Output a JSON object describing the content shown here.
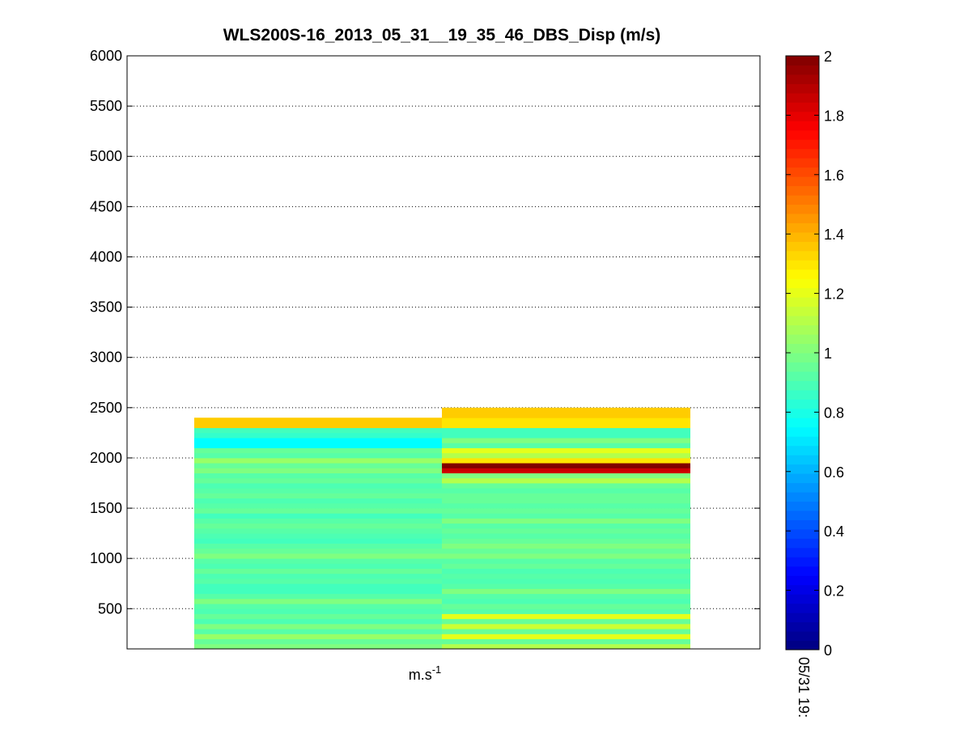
{
  "chart_data": {
    "type": "heatmap",
    "title": "WLS200S-16_2013_05_31__19_35_46_DBS_Disp (m/s)",
    "xlabel": "m.s",
    "xlabel_superscript": "-1",
    "ylabel": "",
    "ylim": [
      100,
      6000
    ],
    "y_ticks": [
      "500",
      "1000",
      "1500",
      "2000",
      "2500",
      "3000",
      "3500",
      "4000",
      "4500",
      "5000",
      "5500",
      "6000"
    ],
    "y_tick_values": [
      500,
      1000,
      1500,
      2000,
      2500,
      3000,
      3500,
      4000,
      4500,
      5000,
      5500,
      6000
    ],
    "grid": true,
    "colorbar": {
      "colormap": "jet",
      "range": [
        0,
        2
      ],
      "ticks": [
        "0",
        "0.2",
        "0.4",
        "0.6",
        "0.8",
        "1",
        "1.2",
        "1.4",
        "1.6",
        "1.8",
        "2"
      ],
      "tick_values": [
        0,
        0.2,
        0.4,
        0.6,
        0.8,
        1,
        1.2,
        1.4,
        1.6,
        1.8,
        2
      ]
    },
    "time_label": "05/31 19:",
    "altitude_start": 100,
    "altitude_step": 50,
    "columns": [
      {
        "name": "",
        "values": [
          1.0,
          0.95,
          1.05,
          0.92,
          1.0,
          0.9,
          0.95,
          0.9,
          0.92,
          1.0,
          0.92,
          0.88,
          0.88,
          0.92,
          0.9,
          0.95,
          0.9,
          0.92,
          1.0,
          0.95,
          0.92,
          0.88,
          0.9,
          0.92,
          0.95,
          0.92,
          0.88,
          0.95,
          0.92,
          0.9,
          0.95,
          0.92,
          0.9,
          0.95,
          0.92,
          1.0,
          0.95,
          1.05,
          0.92,
          0.95,
          0.75,
          0.75,
          0.85,
          0.88,
          1.35,
          1.35
        ]
      },
      {
        "name": "",
        "values": [
          1.1,
          0.95,
          1.2,
          0.95,
          1.15,
          0.95,
          1.2,
          0.92,
          0.95,
          0.9,
          0.92,
          1.0,
          0.92,
          0.9,
          0.92,
          0.9,
          0.95,
          0.92,
          1.0,
          0.95,
          1.0,
          0.95,
          0.92,
          0.95,
          0.92,
          1.0,
          0.92,
          0.95,
          0.92,
          0.95,
          0.95,
          0.92,
          0.95,
          1.1,
          1.0,
          1.85,
          2.0,
          1.3,
          1.1,
          1.2,
          0.92,
          1.0,
          0.88,
          0.88,
          1.3,
          1.3,
          1.35,
          1.35
        ]
      }
    ]
  }
}
